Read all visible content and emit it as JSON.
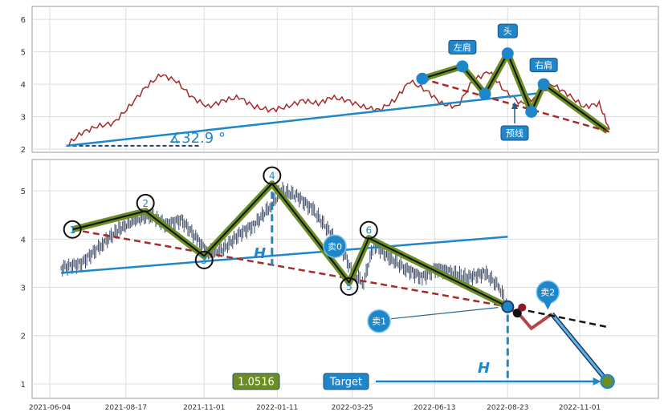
{
  "chart_data": [
    {
      "type": "line",
      "panel": "top",
      "ylim": [
        1.9,
        6.4
      ],
      "yticks": [
        "2",
        "3",
        "4",
        "5",
        "6"
      ],
      "grid": true,
      "series": [
        {
          "color": "#a52a2a",
          "x": [
            "2021-06-20",
            "2021-07-05",
            "2021-07-20",
            "2021-08-05",
            "2021-08-20",
            "2021-09-05",
            "2021-09-20",
            "2021-10-05",
            "2021-10-20",
            "2021-11-05",
            "2021-11-20",
            "2021-12-05",
            "2021-12-20",
            "2022-01-05",
            "2022-01-20",
            "2022-02-05",
            "2022-02-20",
            "2022-03-05",
            "2022-03-20",
            "2022-04-05",
            "2022-04-20",
            "2022-05-05",
            "2022-05-20",
            "2022-06-05",
            "2022-06-20",
            "2022-07-05",
            "2022-07-20",
            "2022-08-05",
            "2022-08-20",
            "2022-09-05",
            "2022-09-20",
            "2022-10-05",
            "2022-10-20",
            "2022-11-05",
            "2022-11-20",
            "2022-11-30"
          ],
          "y": [
            2.1,
            2.5,
            2.7,
            2.8,
            3.3,
            3.9,
            4.3,
            4.1,
            3.6,
            3.3,
            3.5,
            3.6,
            3.3,
            3.2,
            3.3,
            3.5,
            3.4,
            3.6,
            3.5,
            3.3,
            3.2,
            3.5,
            4.1,
            3.8,
            3.4,
            3.3,
            4.1,
            4.4,
            3.8,
            3.4,
            3.6,
            4.0,
            3.7,
            3.3,
            3.4,
            2.6
          ]
        }
      ],
      "pattern_points": [
        {
          "x": "2022-06-01",
          "y": 4.17,
          "label": ""
        },
        {
          "x": "2022-07-10",
          "y": 4.55,
          "label": "左肩"
        },
        {
          "x": "2022-08-01",
          "y": 3.7,
          "label": ""
        },
        {
          "x": "2022-08-23",
          "y": 4.95,
          "label": "头"
        },
        {
          "x": "2022-09-15",
          "y": 3.15,
          "label": ""
        },
        {
          "x": "2022-09-27",
          "y": 4.0,
          "label": "右肩"
        },
        {
          "x": "2022-11-28",
          "y": 2.55,
          "label": ""
        }
      ],
      "neckline_label": "预线",
      "angle_label": "∡32.9 °"
    },
    {
      "type": "line",
      "panel": "bottom",
      "ylim": [
        0.7,
        5.65
      ],
      "yticks": [
        "1",
        "2",
        "3",
        "4",
        "5"
      ],
      "grid": true,
      "x_ticks": [
        "2021-06-04",
        "2021-08-17",
        "2021-11-01",
        "2022-01-11",
        "2022-03-25",
        "2022-06-13",
        "2022-08-23",
        "2022-11-01"
      ],
      "series": [
        {
          "color": "#3b4a66",
          "x": [
            "2021-06-15",
            "2021-07-05",
            "2021-07-25",
            "2021-08-10",
            "2021-08-25",
            "2021-09-10",
            "2021-09-25",
            "2021-10-10",
            "2021-10-25",
            "2021-11-05",
            "2021-11-20",
            "2021-12-05",
            "2021-12-20",
            "2022-01-05",
            "2022-01-15",
            "2022-01-30",
            "2022-02-15",
            "2022-03-01",
            "2022-03-15",
            "2022-03-25",
            "2022-04-05",
            "2022-04-15",
            "2022-05-01",
            "2022-05-15",
            "2022-06-01",
            "2022-06-15",
            "2022-07-01",
            "2022-07-15",
            "2022-08-01",
            "2022-08-15",
            "2022-08-23"
          ],
          "y": [
            3.4,
            3.5,
            3.9,
            4.2,
            4.4,
            4.5,
            4.3,
            4.4,
            4.0,
            3.7,
            3.8,
            4.1,
            4.3,
            4.7,
            5.0,
            4.9,
            4.6,
            4.2,
            3.8,
            3.3,
            3.1,
            3.9,
            3.6,
            3.4,
            3.2,
            3.4,
            3.3,
            3.2,
            3.3,
            3.0,
            2.6
          ]
        }
      ],
      "wave_points": [
        {
          "x": "2021-06-26",
          "y": 4.2,
          "label": "1"
        },
        {
          "x": "2021-09-05",
          "y": 4.58,
          "label": "2"
        },
        {
          "x": "2021-11-01",
          "y": 3.65,
          "label": "3"
        },
        {
          "x": "2022-01-06",
          "y": 5.15,
          "label": "4"
        },
        {
          "x": "2022-03-22",
          "y": 3.1,
          "label": "5"
        },
        {
          "x": "2022-04-10",
          "y": 4.02,
          "label": "6"
        },
        {
          "x": "2022-08-23",
          "y": 2.6,
          "label": ""
        }
      ],
      "support_line": {
        "from": {
          "x": "2021-06-15",
          "y": 3.3
        },
        "to": {
          "x": "2022-08-23",
          "y": 4.05
        }
      },
      "resistance_line": {
        "from": {
          "x": "2021-06-26",
          "y": 4.2
        },
        "to": {
          "x": "2022-08-23",
          "y": 2.6
        }
      },
      "projection": [
        {
          "x": "2022-08-23",
          "y": 2.6
        },
        {
          "x": "2022-09-05",
          "y": 2.4
        },
        {
          "x": "2022-09-15",
          "y": 2.15
        },
        {
          "x": "2022-10-05",
          "y": 2.45
        },
        {
          "x": "2022-11-28",
          "y": 1.05
        }
      ],
      "sell_labels": [
        {
          "x": "2022-03-08",
          "y": 3.85,
          "label": "卖0"
        },
        {
          "x": "2022-04-20",
          "y": 2.3,
          "label": "卖1"
        },
        {
          "x": "2022-10-01",
          "y": 2.9,
          "label": "卖2"
        }
      ],
      "target_value": "1.0516",
      "target_label": "Target",
      "height_label": "H"
    }
  ],
  "colors": {
    "price": "#a52a2a",
    "candles": "#3b4a66",
    "trend_blue": "#1f87c9",
    "dash_red": "#a52a2a",
    "green": "#6b8e23",
    "badge_blue": "#1f87c9",
    "value_green": "#6b8e23"
  }
}
